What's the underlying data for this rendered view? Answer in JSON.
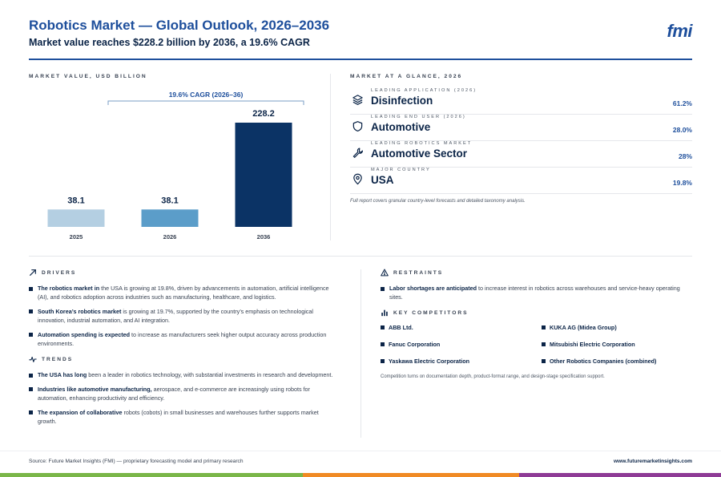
{
  "header": {
    "title": "Robotics Market — Global Outlook, 2026–2036",
    "subtitle": "Market value reaches $228.2 billion by 2036, a 19.6% CAGR",
    "logo": "fmi"
  },
  "chart_section_label": "MARKET VALUE, USD BILLION",
  "chart_data": {
    "type": "bar",
    "categories": [
      "2025",
      "2026",
      "2036"
    ],
    "values": [
      38.1,
      38.1,
      228.2
    ],
    "value_labels": [
      "38.1",
      "38.1",
      "228.2"
    ],
    "bar_colors": [
      "#b4cfe2",
      "#5b9dc9",
      "#0b3365"
    ],
    "annotation": "19.6% CAGR (2026–36)",
    "ylim": [
      0,
      228.2
    ],
    "grid": false
  },
  "glance": {
    "label": "MARKET AT A GLANCE, 2026",
    "items": [
      {
        "caption": "LEADING APPLICATION (2026)",
        "name": "Disinfection",
        "value": "61.2%",
        "icon": "layers-icon"
      },
      {
        "caption": "LEADING END USER (2026)",
        "name": "Automotive",
        "value": "28.0%",
        "icon": "shield-icon"
      },
      {
        "caption": "LEADING ROBOTICS MARKET",
        "name": "Automotive Sector",
        "value": "28%",
        "icon": "wrench-icon"
      },
      {
        "caption": "MAJOR COUNTRY",
        "name": "USA",
        "value": "19.8%",
        "icon": "location-pin-icon"
      }
    ],
    "note": "Full report covers granular country-level forecasts and detailed taxonomy analysis."
  },
  "drivers": {
    "label": "DRIVERS",
    "items": [
      {
        "bold": "The robotics market in",
        "text": " the USA is growing at 19.8%, driven by advancements in automation, artificial intelligence (AI), and robotics adoption across industries such as manufacturing, healthcare, and logistics."
      },
      {
        "bold": "South Korea’s robotics market",
        "text": " is growing at 19.7%, supported by the country’s emphasis on technological innovation, industrial automation, and AI integration."
      },
      {
        "bold": "Automation spending is expected",
        "text": " to increase as manufacturers seek higher output accuracy across production environments."
      }
    ]
  },
  "trends": {
    "label": "TRENDS",
    "items": [
      {
        "bold": "The USA has long",
        "text": " been a leader in robotics technology, with substantial investments in research and development."
      },
      {
        "bold": "Industries like automotive manufacturing,",
        "text": " aerospace, and e-commerce are increasingly using robots for automation, enhancing productivity and efficiency."
      },
      {
        "bold": "The expansion of collaborative",
        "text": " robots (cobots) in small businesses and warehouses further supports market growth."
      }
    ]
  },
  "restraints": {
    "label": "RESTRAINTS",
    "items": [
      {
        "bold": "Labor shortages are anticipated",
        "text": " to increase interest in robotics across warehouses and service-heavy operating sites."
      }
    ]
  },
  "competitors": {
    "label": "KEY COMPETITORS",
    "items": [
      "ABB Ltd.",
      "KUKA AG (Midea Group)",
      "Fanuc Corporation",
      "Mitsubishi Electric Corporation",
      "Yaskawa Electric Corporation",
      "Other Robotics Companies (combined)"
    ],
    "note": "Competition turns on documentation depth, product-format range, and design-stage specification support."
  },
  "footer": {
    "source": "Source: Future Market Insights (FMI) — proprietary forecasting model and primary research",
    "url": "www.futuremarketinsights.com",
    "stripe_colors": [
      "#7ab648",
      "#f08a24",
      "#8e3b96"
    ]
  }
}
